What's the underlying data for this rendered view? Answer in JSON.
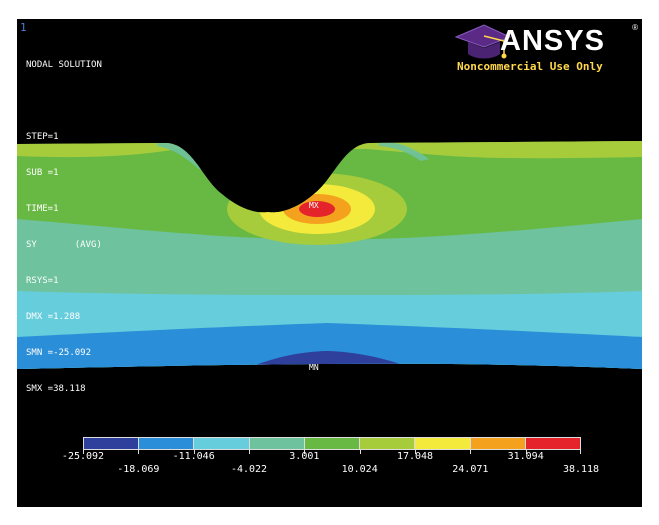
{
  "window_number": "1",
  "info_lines": [
    "NODAL SOLUTION",
    "",
    "STEP=1",
    "SUB =1",
    "TIME=1",
    "SY       (AVG)",
    "RSYS=1",
    "DMX =1.288",
    "SMN =-25.092",
    "SMX =38.118"
  ],
  "logo": {
    "word": "ANSYS",
    "registered": "R",
    "note": "Noncommercial Use Only"
  },
  "markers": {
    "max_label": "MX",
    "min_label": "MN"
  },
  "legend": {
    "colors": [
      "#2e3f9c",
      "#2a8ed8",
      "#66cddc",
      "#6ec29d",
      "#68b944",
      "#a6cc3c",
      "#f4ea3c",
      "#f4a21e",
      "#e4242a"
    ],
    "values_lower_row": [
      "-25.092",
      "-11.046",
      "3.001",
      "17.048",
      "31.094"
    ],
    "values_upper_row": [
      "-18.069",
      "-4.022",
      "10.024",
      "24.071",
      "38.118"
    ]
  },
  "colors": {
    "background": "#000000",
    "text": "#ffffff",
    "note": "#ffd84c",
    "cap": "#5a2a86"
  }
}
